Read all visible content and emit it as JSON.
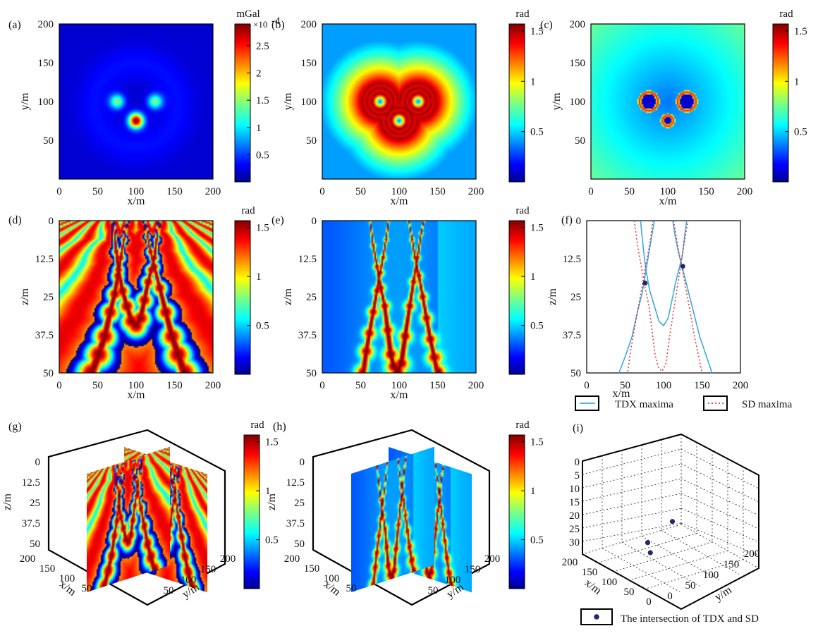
{
  "chart_data": [
    {
      "id": "a",
      "panel_label": "(a)",
      "type": "heatmap",
      "colormap": "jet",
      "description_units": "mGal",
      "xlabel": "x/m",
      "ylabel": "y/m",
      "xlim": [
        0,
        200
      ],
      "ylim": [
        0,
        200
      ],
      "xticks": [
        0,
        50,
        100,
        150,
        200
      ],
      "yticks": [
        50,
        100,
        150,
        200
      ],
      "colorbar": {
        "unit": "mGal",
        "exponent": "×10",
        "exponent_power": "-4",
        "range": [
          0,
          0.00029
        ],
        "ticks": [
          "0.5",
          "1",
          "1.5",
          "2",
          "2.5"
        ],
        "tick_values": [
          0.5,
          1,
          1.5,
          2,
          2.5
        ]
      },
      "sources": [
        {
          "x": 75,
          "y": 100,
          "strength": 0.45
        },
        {
          "x": 125,
          "y": 100,
          "strength": 0.45
        },
        {
          "x": 100,
          "y": 75,
          "strength": 1.0
        }
      ]
    },
    {
      "id": "b",
      "panel_label": "(b)",
      "type": "heatmap",
      "colormap": "jet",
      "xlabel": "x/m",
      "ylabel": "y/m",
      "xlim": [
        0,
        200
      ],
      "ylim": [
        0,
        200
      ],
      "xticks": [
        0,
        50,
        100,
        150,
        200
      ],
      "yticks": [
        50,
        100,
        150,
        200
      ],
      "colorbar": {
        "unit": "rad",
        "range": [
          0,
          1.57
        ],
        "ticks": [
          "0.5",
          "1",
          "1.5"
        ],
        "tick_values": [
          0.5,
          1,
          1.5
        ]
      },
      "sources": [
        {
          "x": 75,
          "y": 100
        },
        {
          "x": 125,
          "y": 100
        },
        {
          "x": 100,
          "y": 75
        }
      ]
    },
    {
      "id": "c",
      "panel_label": "(c)",
      "type": "heatmap",
      "colormap": "jet",
      "xlabel": "x/m",
      "ylabel": "y/m",
      "xlim": [
        0,
        200
      ],
      "ylim": [
        0,
        200
      ],
      "xticks": [
        0,
        50,
        100,
        150,
        200
      ],
      "yticks": [
        50,
        100,
        150,
        200
      ],
      "colorbar": {
        "unit": "rad",
        "range": [
          0,
          1.57
        ],
        "ticks": [
          "0.5",
          "1",
          "1.5"
        ],
        "tick_values": [
          0.5,
          1,
          1.5
        ]
      },
      "sources": [
        {
          "x": 75,
          "y": 100
        },
        {
          "x": 125,
          "y": 100
        },
        {
          "x": 100,
          "y": 75
        }
      ]
    },
    {
      "id": "d",
      "panel_label": "(d)",
      "type": "heatmap",
      "colormap": "jet",
      "xlabel": "x/m",
      "ylabel": "z/m",
      "xlim": [
        0,
        200
      ],
      "ylim": [
        0,
        50
      ],
      "xticks": [
        0,
        50,
        100,
        150,
        200
      ],
      "yticks": [
        "0",
        "12.5",
        "25",
        "37.5",
        "50"
      ],
      "ytick_values": [
        0,
        12.5,
        25,
        37.5,
        50
      ],
      "colorbar": {
        "unit": "rad",
        "range": [
          0,
          1.57
        ],
        "ticks": [
          "0.5",
          "1",
          "1.5"
        ],
        "tick_values": [
          0.5,
          1,
          1.5
        ]
      }
    },
    {
      "id": "e",
      "panel_label": "(e)",
      "type": "heatmap",
      "colormap": "jet",
      "xlabel": "x/m",
      "ylabel": "z/m",
      "xlim": [
        0,
        200
      ],
      "ylim": [
        0,
        50
      ],
      "xticks": [
        0,
        50,
        100,
        150,
        200
      ],
      "yticks": [
        "0",
        "12.5",
        "25",
        "37.5",
        "50"
      ],
      "ytick_values": [
        0,
        12.5,
        25,
        37.5,
        50
      ],
      "colorbar": {
        "unit": "rad",
        "range": [
          0,
          1.57
        ],
        "ticks": [
          "0.5",
          "1",
          "1.5"
        ],
        "tick_values": [
          0.5,
          1,
          1.5
        ]
      }
    },
    {
      "id": "f",
      "panel_label": "(f)",
      "type": "line",
      "xlabel": "x/m",
      "ylabel": "z/m",
      "xlim": [
        0,
        200
      ],
      "ylim": [
        0,
        50
      ],
      "xticks": [
        0,
        50,
        100,
        150,
        200
      ],
      "yticks": [
        "0",
        "12.5",
        "25",
        "37.5",
        "50"
      ],
      "ytick_values": [
        0,
        12.5,
        25,
        37.5,
        50
      ],
      "series": [
        {
          "name": "TDX maxima",
          "style": "solid",
          "color": "#3fa9e0",
          "curves": [
            [
              [
                70,
                0
              ],
              [
                74,
                10
              ],
              [
                77,
                16
              ],
              [
                82,
                23
              ],
              [
                88,
                28
              ],
              [
                94,
                33
              ],
              [
                100,
                34.5
              ],
              [
                106,
                32
              ],
              [
                111,
                26
              ],
              [
                116,
                20
              ],
              [
                120,
                16
              ],
              [
                124,
                12
              ],
              [
                127,
                6
              ],
              [
                130,
                0
              ]
            ],
            [
              [
                88,
                0
              ],
              [
                84,
                6
              ],
              [
                80,
                12
              ],
              [
                76,
                18
              ],
              [
                72,
                24
              ],
              [
                66,
                30
              ],
              [
                59,
                38
              ],
              [
                51,
                44
              ],
              [
                42,
                50
              ]
            ],
            [
              [
                112,
                0
              ],
              [
                115,
                5
              ],
              [
                119,
                10
              ],
              [
                124,
                15
              ],
              [
                131,
                22
              ],
              [
                139,
                30
              ],
              [
                147,
                38
              ],
              [
                155,
                44
              ],
              [
                163,
                50
              ]
            ]
          ]
        },
        {
          "name": "SD maxima",
          "style": "dotted",
          "color": "#e53935",
          "curves": [
            [
              [
                62,
                0
              ],
              [
                66,
                8
              ],
              [
                71,
                15
              ],
              [
                76,
                22
              ],
              [
                81,
                28
              ],
              [
                85,
                36
              ],
              [
                89,
                44
              ],
              [
                93,
                48
              ],
              [
                98,
                49.5
              ],
              [
                103,
                47
              ],
              [
                108,
                38
              ],
              [
                114,
                28
              ],
              [
                119,
                20
              ],
              [
                124,
                12
              ],
              [
                129,
                4
              ],
              [
                132,
                0
              ]
            ],
            [
              [
                86,
                0
              ],
              [
                83,
                6
              ],
              [
                79,
                12
              ],
              [
                75,
                17
              ],
              [
                71,
                23
              ],
              [
                66,
                30
              ],
              [
                61,
                37
              ],
              [
                57,
                43
              ],
              [
                53,
                50
              ]
            ],
            [
              [
                113,
                0
              ],
              [
                117,
                6
              ],
              [
                121,
                12
              ],
              [
                126,
                18
              ],
              [
                131,
                25
              ],
              [
                136,
                32
              ],
              [
                141,
                39
              ],
              [
                146,
                45
              ],
              [
                150,
                50
              ]
            ]
          ]
        }
      ],
      "intersections": [
        {
          "x": 76,
          "y": 20.5
        },
        {
          "x": 125,
          "y": 15
        }
      ]
    },
    {
      "id": "g",
      "panel_label": "(g)",
      "type": "heatmap",
      "subtype": "3d-slices",
      "colormap": "jet",
      "xlabel": "x/m",
      "ylabel": "y/m",
      "zlabel": "z/m",
      "zticks": [
        "0",
        "12.5",
        "25",
        "37.5",
        "50"
      ],
      "xticks": [
        "200",
        "150",
        "100",
        "50"
      ],
      "yticks": [
        "50",
        "100",
        "150",
        "200"
      ],
      "colorbar": {
        "unit": "rad",
        "range": [
          0,
          1.57
        ],
        "ticks": [
          "0.5",
          "1",
          "1.5"
        ],
        "tick_values": [
          0.5,
          1,
          1.5
        ]
      }
    },
    {
      "id": "h",
      "panel_label": "(h)",
      "type": "heatmap",
      "subtype": "3d-slices",
      "colormap": "jet",
      "xlabel": "x/m",
      "ylabel": "y/m",
      "zlabel": "z/m",
      "zticks": [
        "0",
        "12.5",
        "25",
        "37.5",
        "50"
      ],
      "xticks": [
        "200",
        "150",
        "100",
        "50"
      ],
      "yticks": [
        "50",
        "100",
        "150",
        "200"
      ],
      "colorbar": {
        "unit": "rad",
        "range": [
          0,
          1.57
        ],
        "ticks": [
          "0.5",
          "1",
          "1.5"
        ],
        "tick_values": [
          0.5,
          1,
          1.5
        ]
      }
    },
    {
      "id": "i",
      "panel_label": "(i)",
      "type": "scatter",
      "subtype": "3d",
      "xlabel": "x/m",
      "ylabel": "y/m",
      "zticks": [
        "0",
        "5",
        "10",
        "15",
        "20",
        "25",
        "30"
      ],
      "xticks": [
        "200",
        "150",
        "100",
        "50",
        "0"
      ],
      "yticks": [
        "0",
        "50",
        "100",
        "150",
        "200"
      ],
      "points": [
        {
          "x": 75,
          "y": 100,
          "z": 15
        },
        {
          "x": 125,
          "y": 100,
          "z": 20
        },
        {
          "x": 100,
          "y": 75,
          "z": 24
        }
      ],
      "legend": "The intersection of TDX and SD"
    }
  ],
  "legend_f": {
    "tdx": "TDX maxima",
    "sd": "SD maxima"
  },
  "colors": {
    "tdx": "#3fa9e0",
    "sd": "#e53935",
    "point": "#1f2a6b"
  }
}
